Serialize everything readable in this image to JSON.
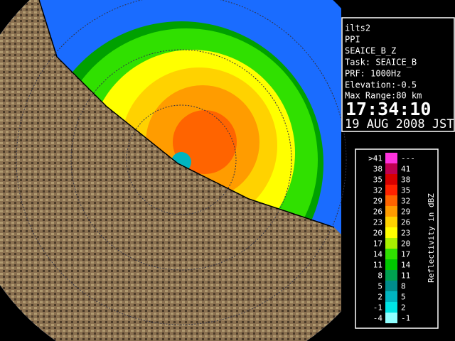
{
  "info": {
    "site": "ilts2",
    "mode": "PPI",
    "product": "SEAICE_B_Z",
    "task": "Task: SEAICE_B",
    "prf": "PRF: 1000Hz",
    "elevation": "Elevation:-0.5",
    "max_range": "Max Range:80 km",
    "time": "17:34:10",
    "date": "19 AUG 2008 JST"
  },
  "legend": {
    "title": "Reflectivity in dBZ",
    "rows": [
      {
        "low": ">41",
        "high": "---",
        "color": "#ff33dd"
      },
      {
        "low": "38",
        "high": "41",
        "color": "#c00050"
      },
      {
        "low": "35",
        "high": "38",
        "color": "#d80000"
      },
      {
        "low": "32",
        "high": "35",
        "color": "#ff2200"
      },
      {
        "low": "29",
        "high": "32",
        "color": "#ff6400"
      },
      {
        "low": "26",
        "high": "29",
        "color": "#ff9c00"
      },
      {
        "low": "23",
        "high": "26",
        "color": "#ffd200"
      },
      {
        "low": "20",
        "high": "23",
        "color": "#ffff00"
      },
      {
        "low": "17",
        "high": "20",
        "color": "#a8f000"
      },
      {
        "low": "14",
        "high": "17",
        "color": "#30e000"
      },
      {
        "low": "11",
        "high": "14",
        "color": "#00c800"
      },
      {
        "low": "8",
        "high": "11",
        "color": "#00a050"
      },
      {
        "low": "5",
        "high": "8",
        "color": "#008c8c"
      },
      {
        "low": "2",
        "high": "5",
        "color": "#00b4c0"
      },
      {
        "low": "-1",
        "high": "2",
        "color": "#00e4e4"
      },
      {
        "low": "-4",
        "high": "-1",
        "color": "#90ffff"
      }
    ]
  }
}
